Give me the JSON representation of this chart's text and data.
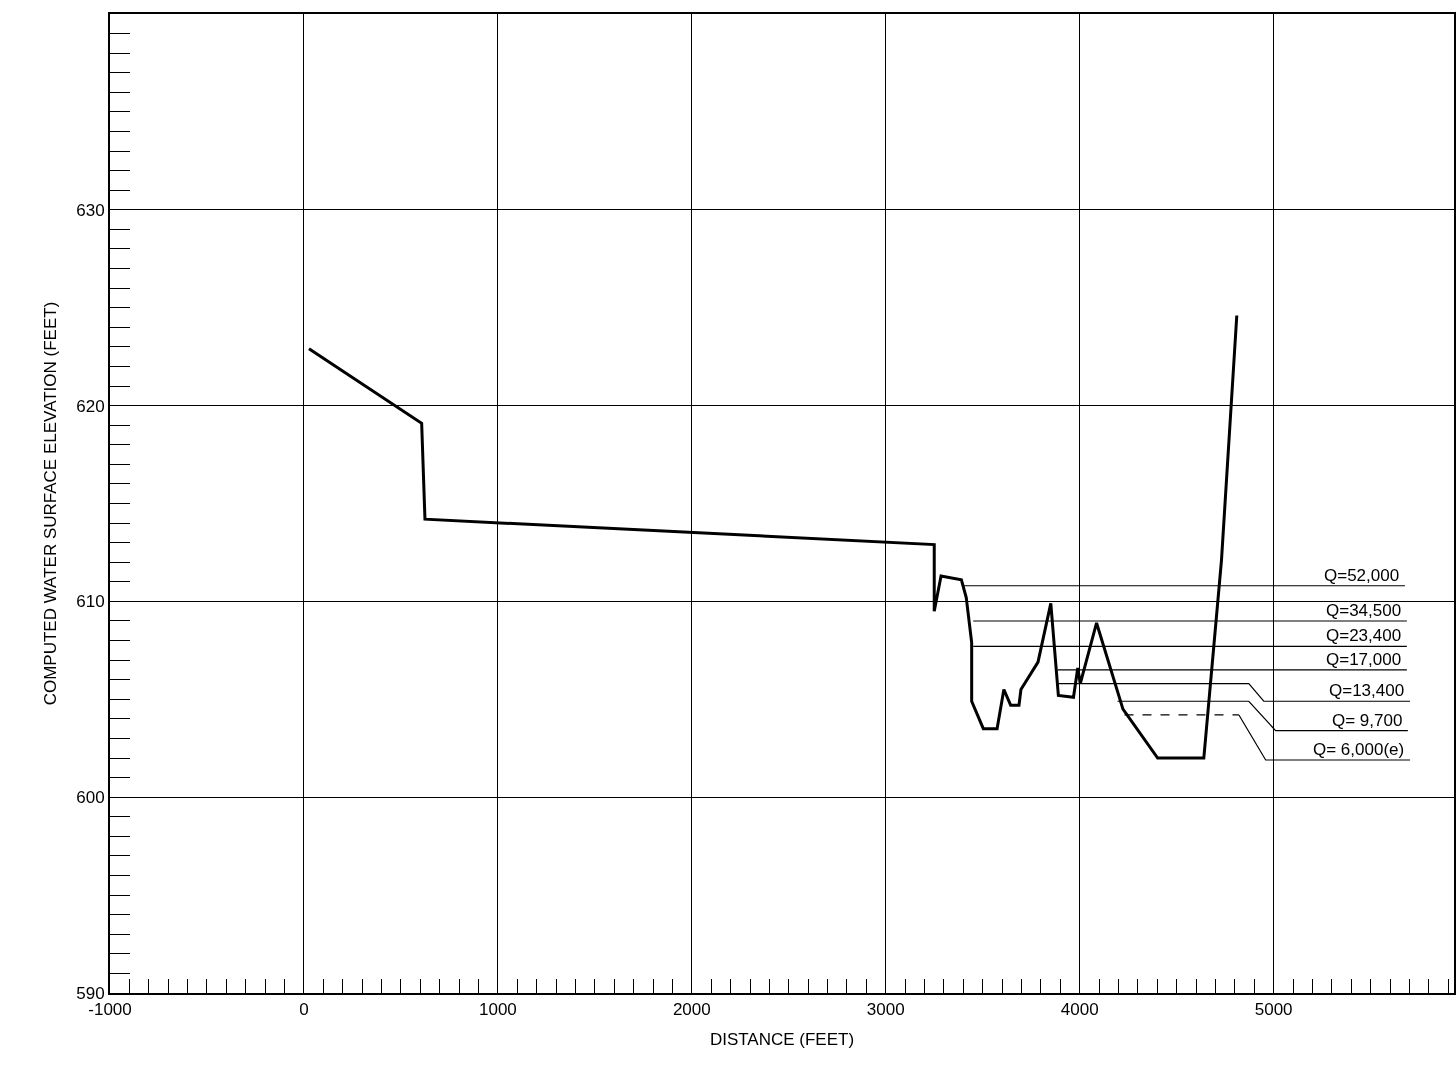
{
  "chart_data": {
    "type": "line",
    "xlabel": "DISTANCE (FEET)",
    "ylabel": "COMPUTED WATER SURFACE ELEVATION (FEET)",
    "xlim": [
      -1000,
      5930
    ],
    "xticks": [
      -1000,
      0,
      1000,
      2000,
      3000,
      4000,
      5000
    ],
    "ylim": [
      590,
      640
    ],
    "yticks": [
      590,
      600,
      610,
      620,
      630
    ],
    "grid": true,
    "legend": false,
    "marker": "none",
    "series": [
      {
        "color": "#000000",
        "line_style": "solid",
        "x": [
          26,
          607,
          624,
          3250,
          3250,
          3285,
          3390,
          3415,
          3443,
          3443,
          3503,
          3574,
          3609,
          3644,
          3687,
          3697,
          3785,
          3851,
          3890,
          3968,
          3990,
          4003,
          4087,
          4223,
          4402,
          4640,
          4731,
          4810
        ],
        "values": [
          622.9,
          619.1,
          614.2,
          612.9,
          609.5,
          611.3,
          611.1,
          610.2,
          607.9,
          604.9,
          603.5,
          603.5,
          605.5,
          604.7,
          604.7,
          605.5,
          606.9,
          609.9,
          605.2,
          605.1,
          606.6,
          605.8,
          608.9,
          604.5,
          602.0,
          602.0,
          612.1,
          624.6
        ]
      },
      {
        "name": "Q=52,000",
        "color": "#000000",
        "line_style": "solid",
        "x": [
          3400,
          5677
        ],
        "values": [
          610.8,
          610.8
        ]
      },
      {
        "name": "Q=34,500",
        "color": "#000000",
        "line_style": "solid",
        "x": [
          3451,
          5687
        ],
        "values": [
          609.0,
          609.0
        ]
      },
      {
        "name": "Q=23,400",
        "color": "#000000",
        "line_style": "solid",
        "x": [
          3451,
          5687
        ],
        "values": [
          607.7,
          607.7
        ]
      },
      {
        "name": "Q=17,000",
        "color": "#000000",
        "line_style": "solid",
        "x": [
          3887,
          5687
        ],
        "values": [
          606.5,
          606.5
        ]
      },
      {
        "name": "Q=13,400",
        "color": "#000000",
        "line_style": "solid",
        "x": [
          3887,
          4872,
          4949,
          5703
        ],
        "values": [
          605.8,
          605.8,
          604.9,
          604.9
        ]
      },
      {
        "name": "Q= 9,700",
        "color": "#000000",
        "line_style": "solid",
        "x": [
          4195,
          4872,
          5010,
          5692
        ],
        "values": [
          604.9,
          604.9,
          603.4,
          603.4
        ]
      },
      {
        "color": "#000000",
        "line_style": "dashed",
        "x": [
          4231,
          4821
        ],
        "values": [
          604.2,
          604.2
        ]
      },
      {
        "name": "Q= 6,000(e)",
        "color": "#000000",
        "line_style": "solid",
        "x": [
          4821,
          4959,
          5703
        ],
        "values": [
          604.2,
          601.9,
          601.9
        ]
      }
    ]
  }
}
